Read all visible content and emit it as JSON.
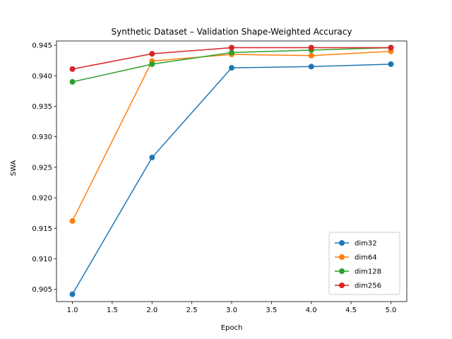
{
  "chart_data": {
    "type": "line",
    "title": "Synthetic Dataset – Validation Shape-Weighted Accuracy",
    "xlabel": "Epoch",
    "ylabel": "SWA",
    "x": [
      1,
      2,
      3,
      4,
      5
    ],
    "xlim": [
      0.8,
      5.2
    ],
    "ylim": [
      0.903,
      0.9457
    ],
    "xticks": [
      "1.0",
      "1.5",
      "2.0",
      "2.5",
      "3.0",
      "3.5",
      "4.0",
      "4.5",
      "5.0"
    ],
    "yticks": [
      "0.905",
      "0.910",
      "0.915",
      "0.920",
      "0.925",
      "0.930",
      "0.935",
      "0.940",
      "0.945"
    ],
    "grid": false,
    "legend_position": "lower-right",
    "series": [
      {
        "name": "dim32",
        "color": "#1f77b4",
        "values": [
          0.9042,
          0.9266,
          0.9413,
          0.9415,
          0.9419
        ]
      },
      {
        "name": "dim64",
        "color": "#ff7f0e",
        "values": [
          0.9162,
          0.9424,
          0.9435,
          0.9433,
          0.944
        ]
      },
      {
        "name": "dim128",
        "color": "#2ca02c",
        "values": [
          0.939,
          0.9419,
          0.9438,
          0.9442,
          0.9446
        ]
      },
      {
        "name": "dim256",
        "color": "#d62728",
        "values": [
          0.9411,
          0.9436,
          0.9446,
          0.9446,
          0.9446
        ]
      }
    ]
  }
}
